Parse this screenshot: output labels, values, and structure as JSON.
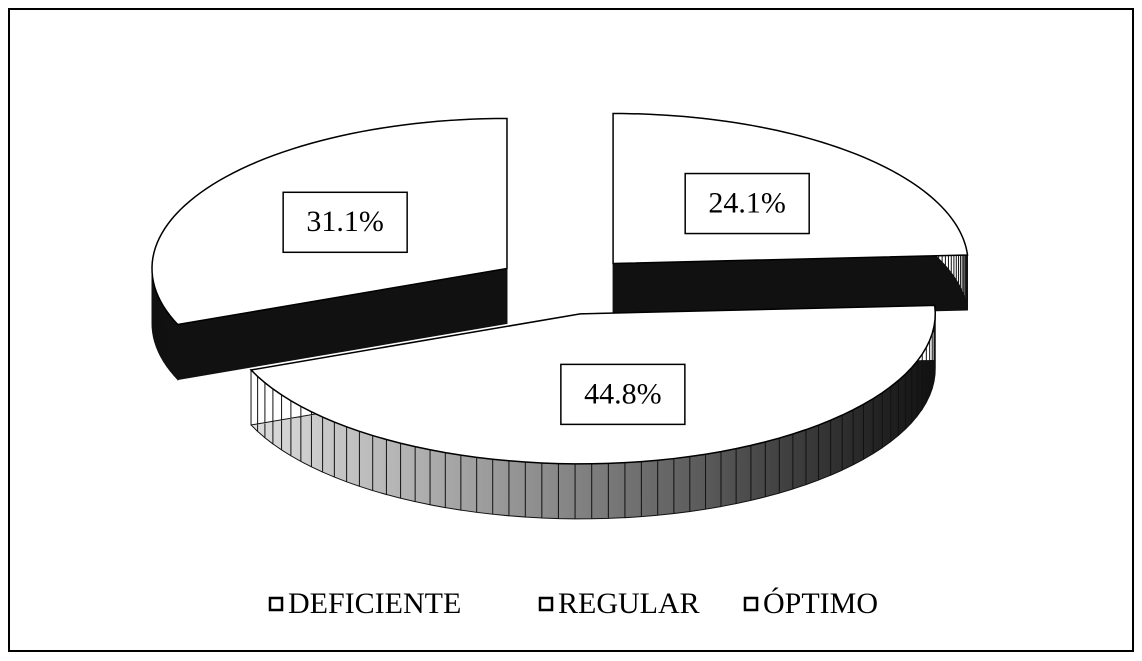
{
  "chart_data": {
    "type": "pie",
    "categories": [
      "DEFICIENTE",
      "REGULAR",
      "ÓPTIMO"
    ],
    "values": [
      24.1,
      44.8,
      31.1
    ],
    "value_labels": [
      "24.1%",
      "44.8%",
      "31.1%"
    ],
    "color": "#ffffff",
    "legend": "bottom"
  }
}
